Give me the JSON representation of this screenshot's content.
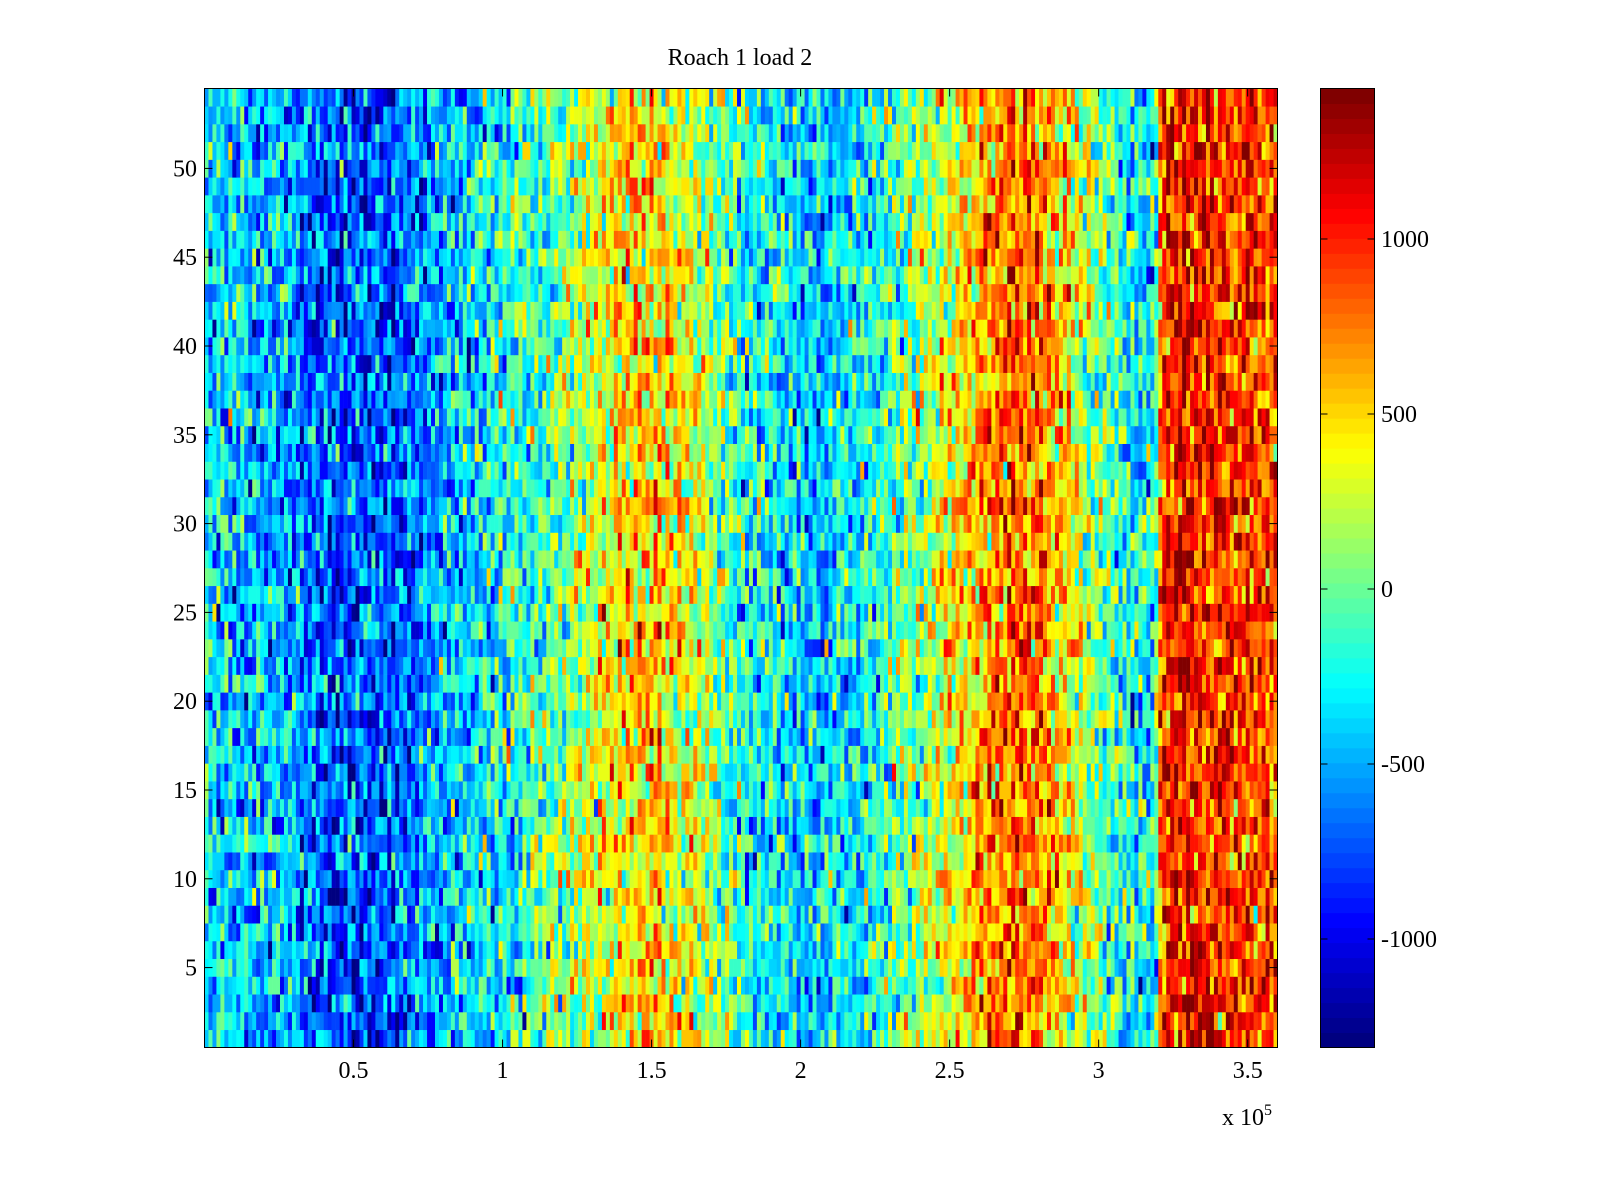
{
  "chart_data": {
    "type": "heatmap",
    "title": "Roach 1 load 2",
    "xlabel": "",
    "ylabel": "",
    "x_exponent_label": "x 10",
    "x_exponent": "5",
    "xlim": [
      0,
      360000
    ],
    "ylim": [
      0.5,
      54.5
    ],
    "rows": 54,
    "x_ticks": [
      50000,
      100000,
      150000,
      200000,
      250000,
      300000,
      350000
    ],
    "x_tick_labels": [
      "0.5",
      "1",
      "1.5",
      "2",
      "2.5",
      "3",
      "3.5"
    ],
    "y_ticks": [
      5,
      10,
      15,
      20,
      25,
      30,
      35,
      40,
      45,
      50
    ],
    "y_tick_labels": [
      "5",
      "10",
      "15",
      "20",
      "25",
      "30",
      "35",
      "40",
      "45",
      "50"
    ],
    "colormap": "jet",
    "clim": [
      -1310,
      1430
    ],
    "colorbar_ticks": [
      -1000,
      -500,
      0,
      500,
      1000
    ],
    "colorbar_tick_labels": [
      "-1000",
      "-500",
      "0",
      "500",
      "1000"
    ],
    "column_mean_profile": {
      "x": [
        0,
        10000,
        20000,
        30000,
        40000,
        50000,
        60000,
        70000,
        80000,
        90000,
        100000,
        110000,
        120000,
        130000,
        140000,
        150000,
        160000,
        170000,
        180000,
        190000,
        200000,
        210000,
        220000,
        230000,
        240000,
        250000,
        260000,
        270000,
        280000,
        290000,
        300000,
        310000,
        319000,
        321000,
        330000,
        340000,
        350000,
        360000
      ],
      "values": [
        -350,
        -400,
        -450,
        -550,
        -700,
        -750,
        -750,
        -650,
        -500,
        -350,
        -250,
        -100,
        50,
        250,
        450,
        550,
        350,
        100,
        -150,
        -300,
        -400,
        -400,
        -300,
        -100,
        100,
        350,
        650,
        800,
        750,
        400,
        0,
        -250,
        -300,
        950,
        1050,
        1000,
        900,
        850
      ]
    },
    "noise_std": 320
  }
}
